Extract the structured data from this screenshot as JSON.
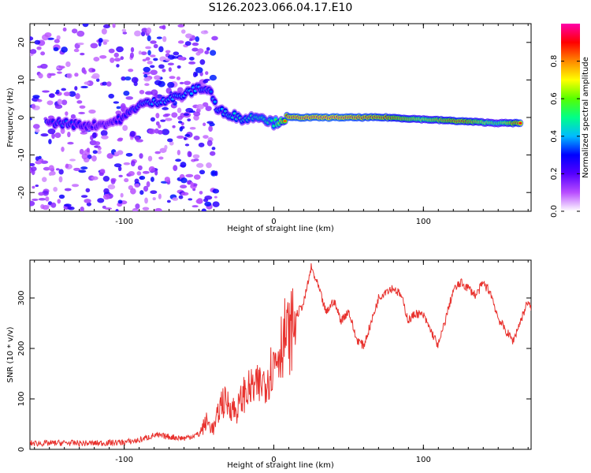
{
  "title": "S126.2023.066.04.17.E10",
  "chart_data": [
    {
      "type": "heatmap",
      "xlabel": "Height of straight line (km)",
      "ylabel": "Frequency (Hz)",
      "xlim": [
        -163,
        172
      ],
      "ylim": [
        -25,
        25
      ],
      "xticks": [
        -100,
        0,
        100
      ],
      "yticks": [
        -20,
        -10,
        0,
        10,
        20
      ],
      "colorbar": {
        "label": "Normalized spectral amplitude",
        "range": [
          0.0,
          1.0
        ],
        "ticks": [
          "0.0",
          "0.2",
          "0.4",
          "0.6",
          "0.8"
        ],
        "colors": [
          "#ffffff",
          "#b84dff",
          "#5500ff",
          "#0000ff",
          "#00bbff",
          "#00ff88",
          "#55ff00",
          "#ffff00",
          "#ff8800",
          "#ff0000",
          "#ff00aa"
        ]
      },
      "ridge": [
        {
          "x": -150,
          "f": -1.5,
          "a": 0.3
        },
        {
          "x": -140,
          "f": -1.5,
          "a": 0.35
        },
        {
          "x": -130,
          "f": -2.0,
          "a": 0.3
        },
        {
          "x": -120,
          "f": -2.0,
          "a": 0.25
        },
        {
          "x": -110,
          "f": -1.5,
          "a": 0.25
        },
        {
          "x": -100,
          "f": 0.0,
          "a": 0.3
        },
        {
          "x": -90,
          "f": 3.5,
          "a": 0.35
        },
        {
          "x": -80,
          "f": 4.0,
          "a": 0.4
        },
        {
          "x": -70,
          "f": 5.0,
          "a": 0.4
        },
        {
          "x": -60,
          "f": 6.0,
          "a": 0.4
        },
        {
          "x": -50,
          "f": 8.0,
          "a": 0.4
        },
        {
          "x": -42,
          "f": 7.0,
          "a": 0.35
        },
        {
          "x": -38,
          "f": 2.0,
          "a": 0.4
        },
        {
          "x": -30,
          "f": 1.0,
          "a": 0.45
        },
        {
          "x": -20,
          "f": -0.5,
          "a": 0.45
        },
        {
          "x": -10,
          "f": 0.5,
          "a": 0.5
        },
        {
          "x": 0,
          "f": -1.5,
          "a": 0.5
        },
        {
          "x": 10,
          "f": 0.0,
          "a": 0.95
        },
        {
          "x": 40,
          "f": 0.0,
          "a": 0.98
        },
        {
          "x": 75,
          "f": 0.0,
          "a": 0.9
        },
        {
          "x": 100,
          "f": -0.5,
          "a": 0.7
        },
        {
          "x": 125,
          "f": -1.0,
          "a": 0.9
        },
        {
          "x": 150,
          "f": -1.5,
          "a": 0.6
        },
        {
          "x": 166,
          "f": -1.5,
          "a": 0.95
        }
      ]
    },
    {
      "type": "line",
      "xlabel": "Height of straight line (km)",
      "ylabel": "SNR (10 * v/v)",
      "xlim": [
        -163,
        172
      ],
      "ylim": [
        0,
        375
      ],
      "xticks": [
        -100,
        0,
        100
      ],
      "yticks": [
        0,
        100,
        200,
        300
      ],
      "color": "#e8322e",
      "x": [
        -163,
        -150,
        -140,
        -130,
        -120,
        -110,
        -100,
        -90,
        -80,
        -70,
        -60,
        -50,
        -45,
        -40,
        -35,
        -30,
        -25,
        -20,
        -15,
        -10,
        -5,
        0,
        5,
        8,
        10,
        15,
        20,
        25,
        30,
        35,
        40,
        45,
        50,
        55,
        60,
        65,
        70,
        75,
        80,
        85,
        90,
        95,
        100,
        105,
        110,
        115,
        120,
        125,
        130,
        135,
        140,
        145,
        150,
        155,
        160,
        165,
        170,
        172
      ],
      "y": [
        12,
        12,
        13,
        12,
        12,
        13,
        14,
        18,
        28,
        25,
        22,
        30,
        55,
        40,
        95,
        90,
        75,
        110,
        120,
        125,
        140,
        170,
        210,
        230,
        220,
        265,
        290,
        360,
        320,
        270,
        295,
        255,
        275,
        220,
        205,
        250,
        300,
        315,
        320,
        305,
        255,
        270,
        265,
        235,
        205,
        260,
        315,
        330,
        320,
        305,
        330,
        310,
        260,
        235,
        215,
        255,
        295,
        275
      ]
    }
  ]
}
